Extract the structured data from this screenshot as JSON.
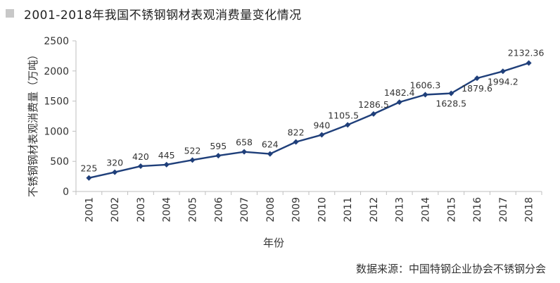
{
  "title": "2001-2018年我国不锈钢钢材表观消费量变化情况",
  "source": "数据来源：中国特钢企业协会不锈钢分会",
  "chart_data": {
    "type": "line",
    "title": "2001-2018年我国不锈钢钢材表观消费量变化情况",
    "xlabel": "年份",
    "ylabel": "不锈钢钢材表观消费量（万吨）",
    "categories": [
      "2001",
      "2002",
      "2003",
      "2004",
      "2005",
      "2006",
      "2007",
      "2008",
      "2009",
      "2010",
      "2011",
      "2012",
      "2013",
      "2014",
      "2015",
      "2016",
      "2017",
      "2018"
    ],
    "series": [
      {
        "values": [
          225,
          320,
          420,
          445,
          522,
          595,
          658,
          624,
          822,
          940,
          1105.5,
          1286.5,
          1482.4,
          1606.3,
          1628.5,
          1879.6,
          1994.2,
          2132.36
        ]
      }
    ],
    "data_labels": [
      "225",
      "320",
      "420",
      "445",
      "522",
      "595",
      "658",
      "624",
      "822",
      "940",
      "1105.5",
      "1286.5",
      "1482.4",
      "1606.3",
      "1628.5",
      "1879.6",
      "1994.2",
      "2132.36"
    ],
    "yticks": [
      "0",
      "500",
      "1000",
      "1500",
      "2000",
      "2500"
    ],
    "ylim": [
      0,
      2500
    ],
    "grid": false,
    "legend": "none",
    "line_color": "#1f3f7a",
    "axis_color": "#bfbfbf"
  }
}
